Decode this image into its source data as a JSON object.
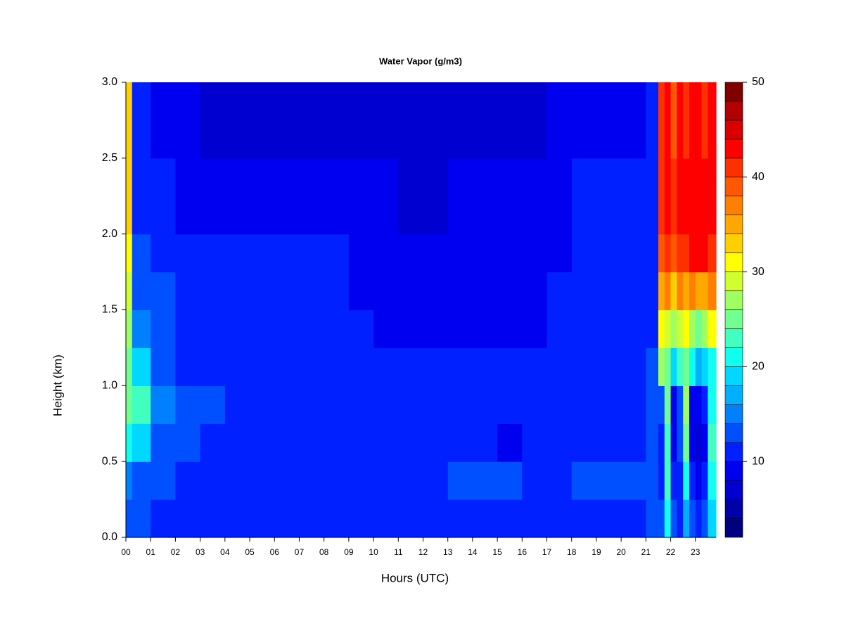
{
  "chart_data": {
    "type": "heatmap",
    "title": "Water Vapor (g/m3)",
    "x_label": "Hours (UTC)",
    "y_label": "Height (km)",
    "xlim": [
      0,
      23.83
    ],
    "ylim": [
      0,
      3
    ],
    "xticks": [
      {
        "value": 0,
        "label": "00"
      },
      {
        "value": 1,
        "label": "01"
      },
      {
        "value": 2,
        "label": "02"
      },
      {
        "value": 3,
        "label": "03"
      },
      {
        "value": 4,
        "label": "04"
      },
      {
        "value": 5,
        "label": "05"
      },
      {
        "value": 6,
        "label": "06"
      },
      {
        "value": 7,
        "label": "07"
      },
      {
        "value": 8,
        "label": "08"
      },
      {
        "value": 9,
        "label": "09"
      },
      {
        "value": 10,
        "label": "10"
      },
      {
        "value": 11,
        "label": "11"
      },
      {
        "value": 12,
        "label": "12"
      },
      {
        "value": 13,
        "label": "13"
      },
      {
        "value": 14,
        "label": "14"
      },
      {
        "value": 15,
        "label": "15"
      },
      {
        "value": 16,
        "label": "16"
      },
      {
        "value": 17,
        "label": "17"
      },
      {
        "value": 18,
        "label": "18"
      },
      {
        "value": 19,
        "label": "19"
      },
      {
        "value": 20,
        "label": "20"
      },
      {
        "value": 21,
        "label": "21"
      },
      {
        "value": 22,
        "label": "22"
      },
      {
        "value": 23,
        "label": "23"
      }
    ],
    "yticks": [
      {
        "value": 0,
        "label": "0.0"
      },
      0.5,
      {
        "value": 1,
        "label": "1.0"
      },
      1.5,
      {
        "value": 2,
        "label": "2.0"
      },
      2.5,
      {
        "value": 3,
        "label": "3.0"
      }
    ],
    "xbins": [
      0,
      0.25,
      1,
      2,
      3,
      4,
      5,
      6,
      7,
      8,
      9,
      10,
      11,
      12,
      13,
      14,
      15,
      16,
      17,
      18,
      19,
      20,
      21,
      21.5,
      21.75,
      22,
      22.25,
      22.5,
      22.75,
      23,
      23.25,
      23.5,
      23.83
    ],
    "ybins": [
      0,
      0.25,
      0.5,
      0.75,
      1,
      1.25,
      1.5,
      1.75,
      2,
      2.5,
      3
    ],
    "z": [
      [
        13,
        13,
        11,
        11,
        11,
        11,
        11,
        11,
        11,
        11,
        11,
        11,
        11,
        11,
        11,
        11,
        11,
        11,
        11,
        11,
        11,
        11,
        12,
        13,
        20,
        12,
        11,
        16,
        12,
        11,
        12,
        18
      ],
      [
        15,
        13,
        12,
        11,
        11,
        11,
        11,
        11,
        11,
        11,
        11,
        11,
        11,
        11,
        13,
        12,
        12,
        11,
        11,
        12,
        13,
        13,
        12,
        11,
        22,
        10,
        11,
        20,
        10,
        9,
        11,
        20
      ],
      [
        20,
        18,
        13,
        12,
        11,
        11,
        11,
        11,
        11,
        11,
        11,
        11,
        11,
        11,
        10,
        10,
        9,
        11,
        10,
        11,
        11,
        11,
        12,
        11,
        22,
        8,
        12,
        24,
        8,
        7,
        9,
        22
      ],
      [
        24,
        22,
        14,
        13,
        12,
        11,
        11,
        11,
        11,
        11,
        11,
        11,
        11,
        11,
        10,
        10,
        10,
        11,
        11,
        11,
        11,
        11,
        13,
        13,
        24,
        9,
        12,
        26,
        9,
        9,
        10,
        20
      ],
      [
        24,
        18,
        12,
        11,
        11,
        11,
        11,
        11,
        11,
        11,
        11,
        11,
        11,
        11,
        11,
        10,
        10,
        10,
        10,
        10,
        10,
        10,
        12,
        26,
        24,
        18,
        22,
        24,
        20,
        16,
        18,
        20
      ],
      [
        26,
        14,
        12,
        11,
        10,
        10,
        10,
        10,
        10,
        10,
        10,
        9,
        9,
        9,
        9,
        9,
        9,
        9,
        10,
        10,
        10,
        10,
        11,
        30,
        28,
        26,
        28,
        30,
        26,
        24,
        26,
        30
      ],
      [
        28,
        12,
        12,
        11,
        10,
        10,
        10,
        10,
        10,
        10,
        9,
        9,
        9,
        9,
        9,
        9,
        9,
        9,
        10,
        10,
        10,
        10,
        11,
        34,
        36,
        32,
        36,
        34,
        36,
        34,
        34,
        36
      ],
      [
        30,
        12,
        11,
        10,
        10,
        10,
        10,
        10,
        10,
        10,
        8,
        8,
        8,
        8,
        8,
        8,
        8,
        8,
        9,
        10,
        10,
        10,
        11,
        38,
        40,
        38,
        40,
        40,
        42,
        42,
        42,
        40
      ],
      [
        32,
        11,
        10,
        9,
        9,
        9,
        9,
        9,
        9,
        9,
        8,
        8,
        7,
        7,
        8,
        8,
        8,
        8,
        9,
        10,
        10,
        10,
        10,
        40,
        42,
        40,
        42,
        42,
        42,
        42,
        42,
        42
      ],
      [
        32,
        10,
        9,
        8,
        7,
        7,
        7,
        7,
        7,
        7,
        6,
        6,
        6,
        6,
        6,
        7,
        7,
        7,
        8,
        9,
        9,
        9,
        10,
        40,
        42,
        38,
        42,
        40,
        42,
        42,
        40,
        42
      ]
    ],
    "colorbar": {
      "levels": [
        2,
        4,
        6,
        8,
        10,
        12,
        14,
        16,
        18,
        20,
        22,
        24,
        26,
        28,
        30,
        32,
        34,
        36,
        38,
        40,
        42,
        44,
        46,
        48,
        50
      ],
      "colors": [
        "#000080",
        "#0000a8",
        "#0000d0",
        "#0000f0",
        "#0020ff",
        "#0050ff",
        "#0080ff",
        "#00b0ff",
        "#00d8ff",
        "#10ffef",
        "#40ffbf",
        "#70ff90",
        "#a0ff60",
        "#d0ff30",
        "#ffff00",
        "#ffd000",
        "#ffa800",
        "#ff8000",
        "#ff5800",
        "#ff3000",
        "#ff0000",
        "#d80000",
        "#b00000",
        "#800000"
      ],
      "ticks": [
        10,
        20,
        30,
        40,
        50
      ]
    }
  }
}
